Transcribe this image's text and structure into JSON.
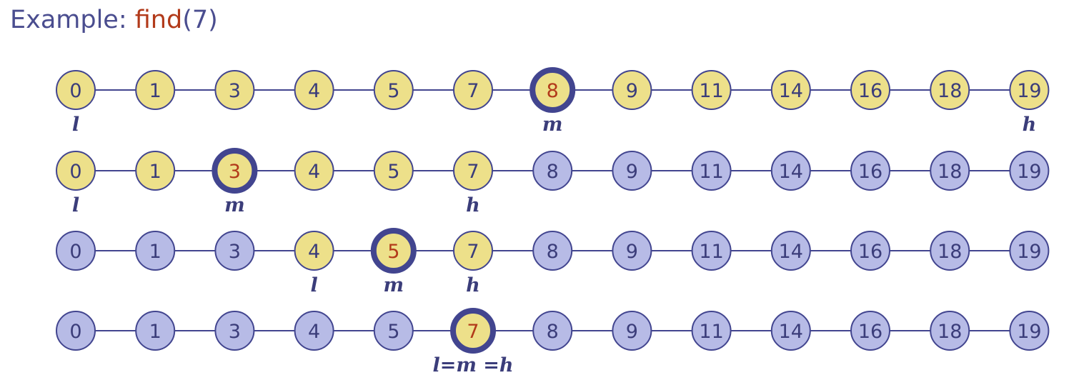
{
  "title": {
    "prefix": "Example: ",
    "fn": "find",
    "args": "(7)"
  },
  "colors": {
    "active_fill": "#ede08a",
    "inactive_fill": "#b7bbe6",
    "stroke": "#42458f",
    "text": "#3b3d7a",
    "highlight_text": "#b23a1a"
  },
  "values": [
    "0",
    "1",
    "3",
    "4",
    "5",
    "7",
    "8",
    "9",
    "11",
    "14",
    "16",
    "18",
    "19"
  ],
  "rows": [
    {
      "active_range": [
        0,
        12
      ],
      "mid": 6,
      "pointers": [
        {
          "index": 0,
          "label": "l"
        },
        {
          "index": 6,
          "label": "m"
        },
        {
          "index": 12,
          "label": "h"
        }
      ]
    },
    {
      "active_range": [
        0,
        5
      ],
      "mid": 2,
      "pointers": [
        {
          "index": 0,
          "label": "l"
        },
        {
          "index": 2,
          "label": "m"
        },
        {
          "index": 5,
          "label": "h"
        }
      ]
    },
    {
      "active_range": [
        3,
        5
      ],
      "mid": 4,
      "pointers": [
        {
          "index": 3,
          "label": "l"
        },
        {
          "index": 4,
          "label": "m"
        },
        {
          "index": 5,
          "label": "h"
        }
      ]
    },
    {
      "active_range": [
        5,
        5
      ],
      "mid": 5,
      "pointers": [
        {
          "index": 5,
          "label": "l=m =h"
        }
      ]
    }
  ]
}
